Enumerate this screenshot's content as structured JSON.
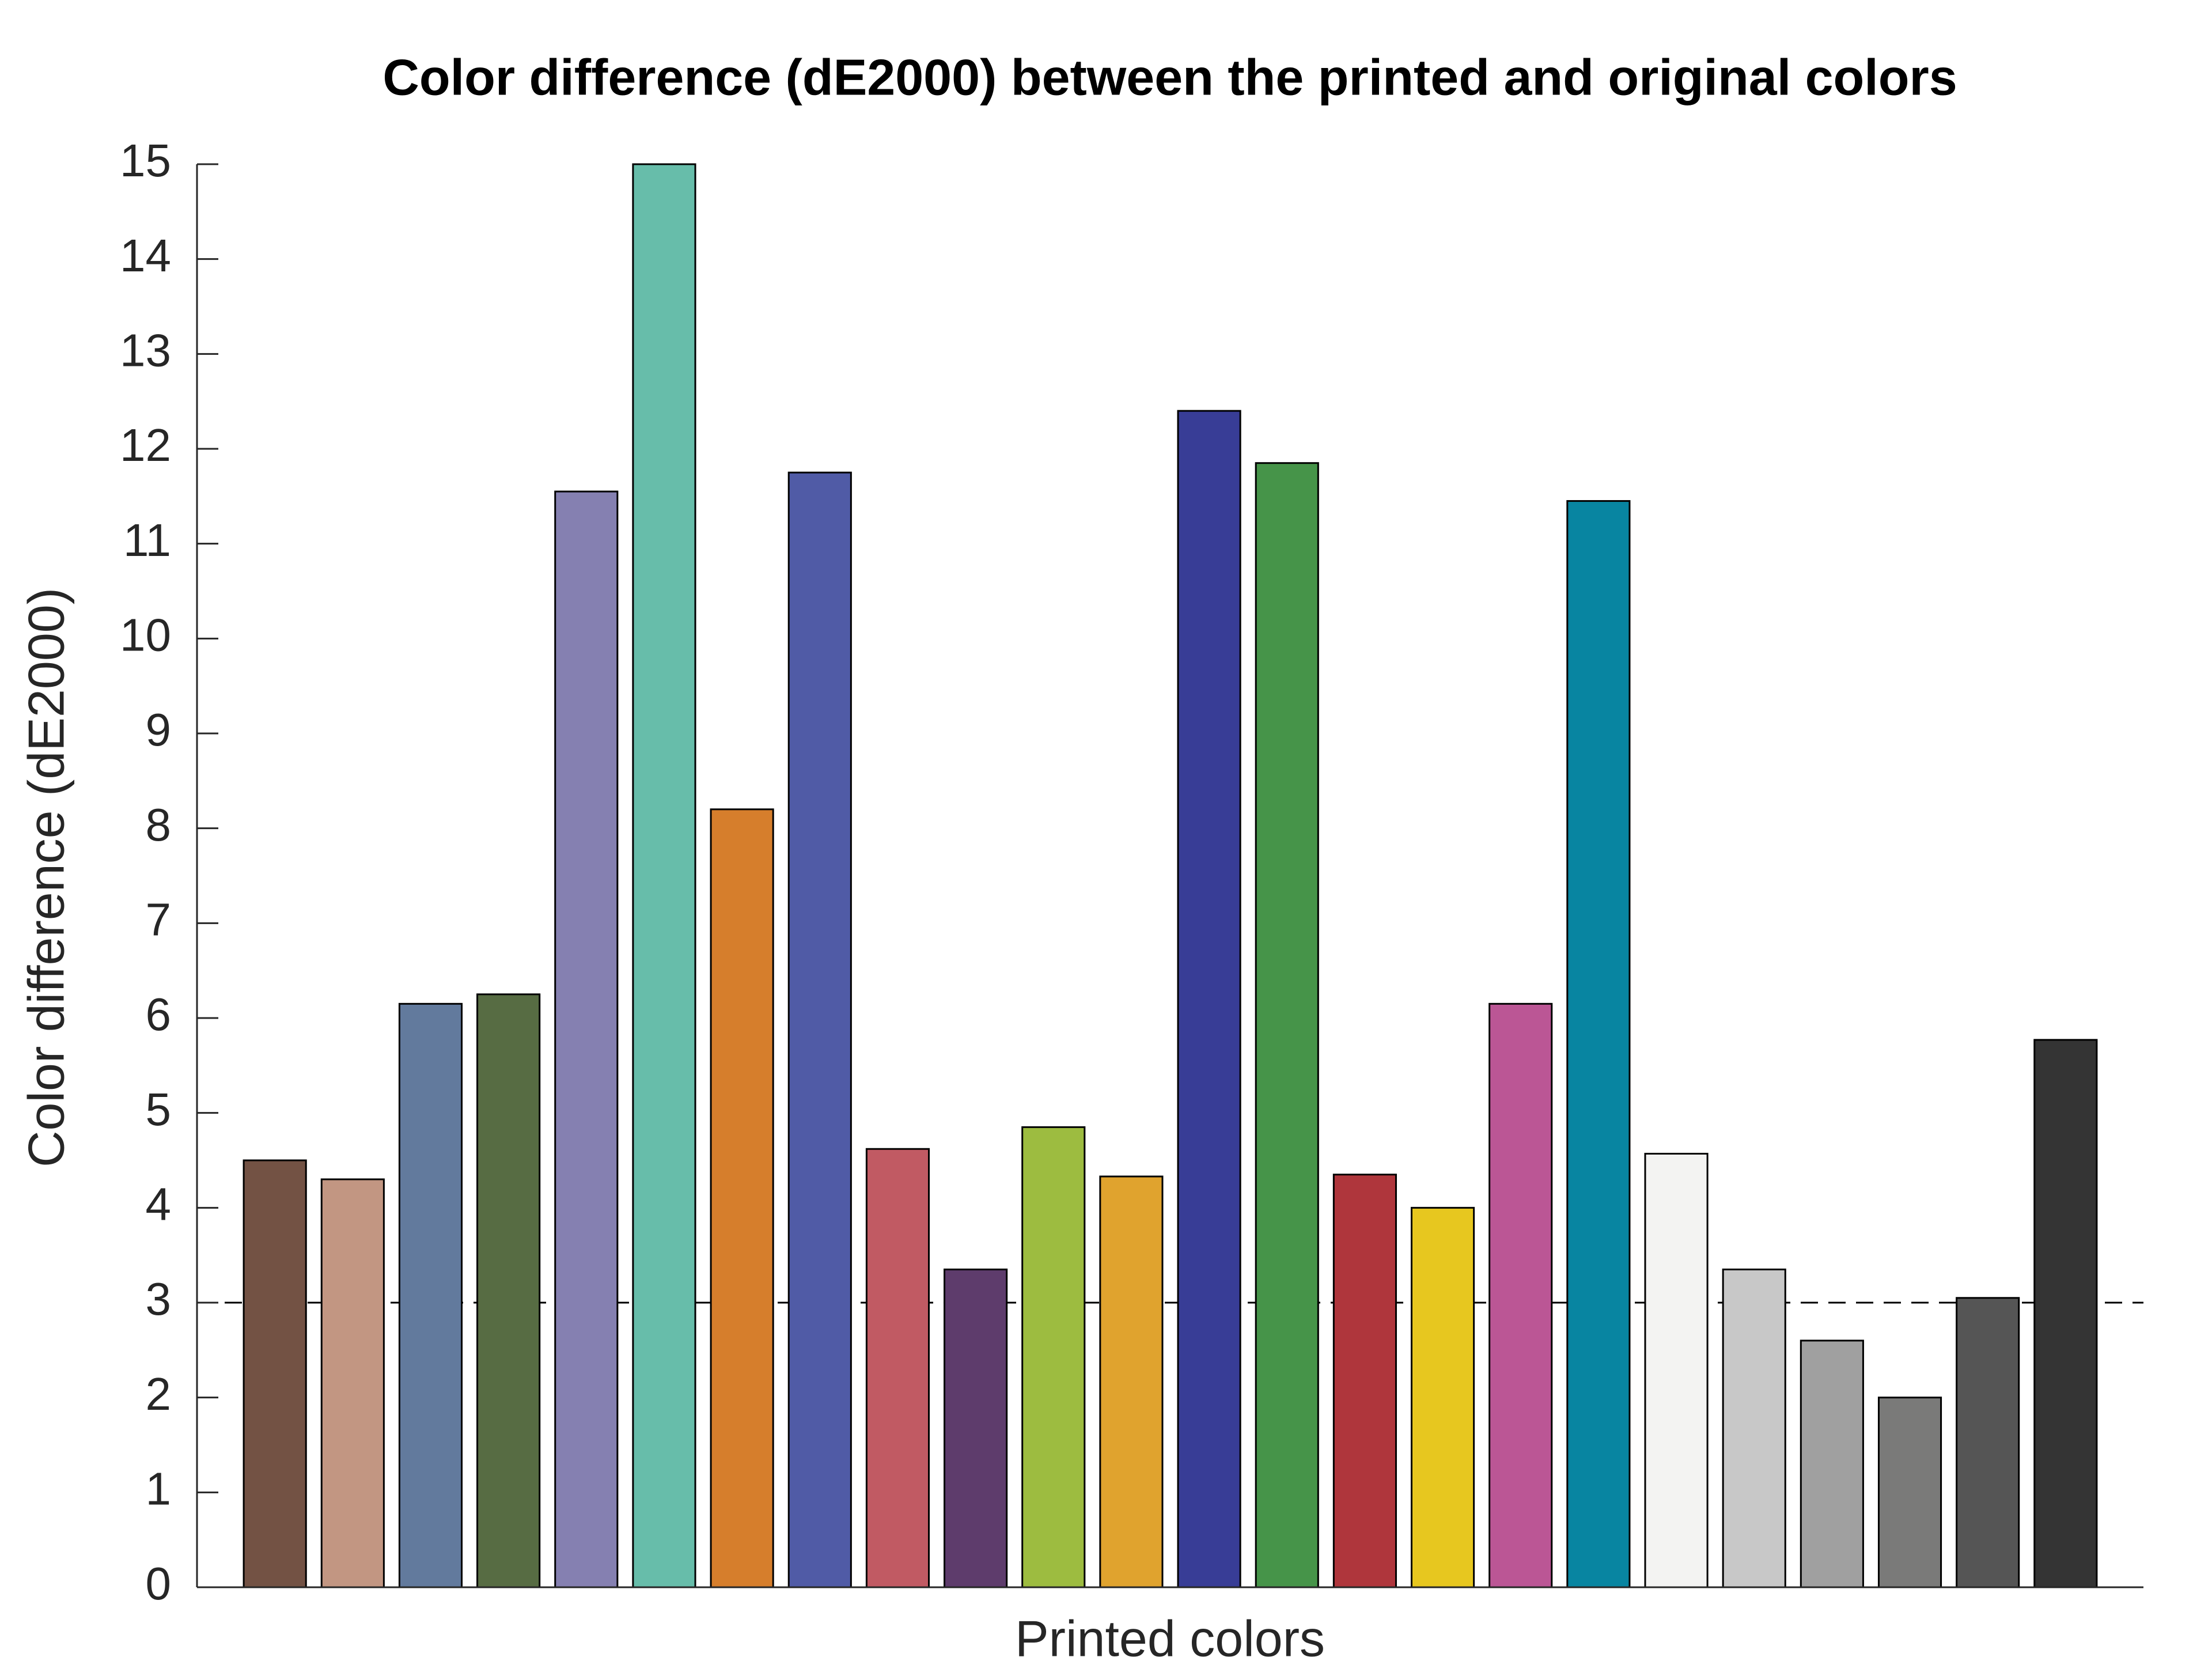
{
  "chart_data": {
    "type": "bar",
    "title": "Color difference (dE2000) between the printed and original colors",
    "x_label": "Printed colors",
    "y_label": "Color difference (dE2000)",
    "categories": [
      null,
      null,
      null,
      null,
      null,
      null,
      null,
      null,
      null,
      null,
      null,
      null,
      null,
      null,
      null,
      null,
      null,
      null,
      null,
      null,
      null,
      null,
      null,
      null
    ],
    "values": [
      4.5,
      4.3,
      6.15,
      6.25,
      11.55,
      15,
      8.2,
      11.75,
      4.62,
      3.35,
      4.85,
      4.33,
      12.4,
      11.85,
      4.35,
      4.0,
      6.15,
      11.45,
      4.57,
      3.35,
      2.6,
      2.0,
      3.05,
      5.77
    ],
    "colors": [
      "#735244",
      "#c29682",
      "#627a9d",
      "#576c43",
      "#8580b1",
      "#67bdaa",
      "#d67e2c",
      "#505ba6",
      "#c15a63",
      "#5e3c6c",
      "#9dbc40",
      "#e0a32e",
      "#383d96",
      "#469449",
      "#af363c",
      "#e7c71f",
      "#bb5695",
      "#0885a1",
      "#f3f3f2",
      "#c8c8c8",
      "#a0a0a0",
      "#7a7a79",
      "#555555",
      "#343434"
    ],
    "reference_line": 3,
    "ylim": [
      0,
      15
    ],
    "yticks": [
      0,
      1,
      2,
      3,
      4,
      5,
      6,
      7,
      8,
      9,
      10,
      11,
      12,
      13,
      14,
      15
    ]
  }
}
